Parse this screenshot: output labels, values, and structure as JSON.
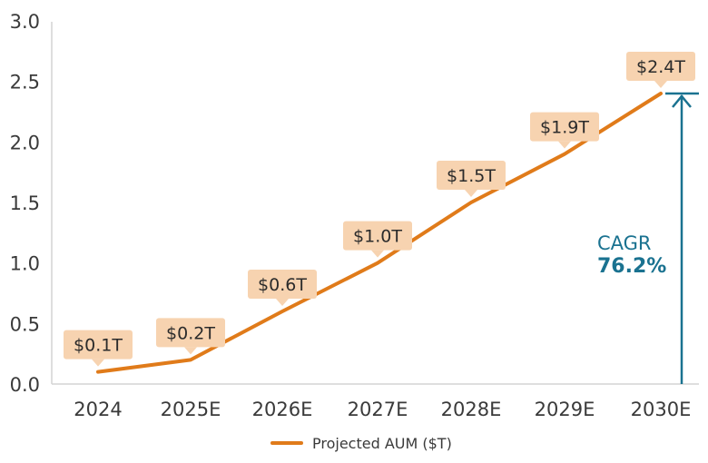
{
  "chart_data": {
    "type": "line",
    "title": "",
    "xlabel": "",
    "ylabel": "",
    "categories": [
      "2024",
      "2025E",
      "2026E",
      "2027E",
      "2028E",
      "2029E",
      "2030E"
    ],
    "series": [
      {
        "name": "Projected AUM ($T)",
        "color": "#e07b1a",
        "values": [
          0.1,
          0.2,
          0.6,
          1.0,
          1.5,
          1.9,
          2.4
        ],
        "data_labels": [
          "$0.1T",
          "$0.2T",
          "$0.6T",
          "$1.0T",
          "$1.5T",
          "$1.9T",
          "$2.4T"
        ]
      }
    ],
    "ylim": [
      0,
      3.0
    ],
    "yticks": [
      "0.0",
      "0.5",
      "1.0",
      "1.5",
      "2.0",
      "2.5",
      "3.0"
    ],
    "grid": false,
    "legend_position": "bottom",
    "annotations": [
      {
        "type": "arrow",
        "label": "CAGR",
        "value": "76.2%",
        "color": "#1a7290"
      }
    ]
  },
  "colors": {
    "line": "#e07b1a",
    "label_bg": "#f7d3b0",
    "cagr": "#1a7290",
    "axis": "#d4d4d4",
    "text": "#3a3a3a"
  },
  "legend": {
    "label": "Projected AUM ($T)"
  },
  "cagr": {
    "label": "CAGR",
    "value": "76.2%"
  }
}
